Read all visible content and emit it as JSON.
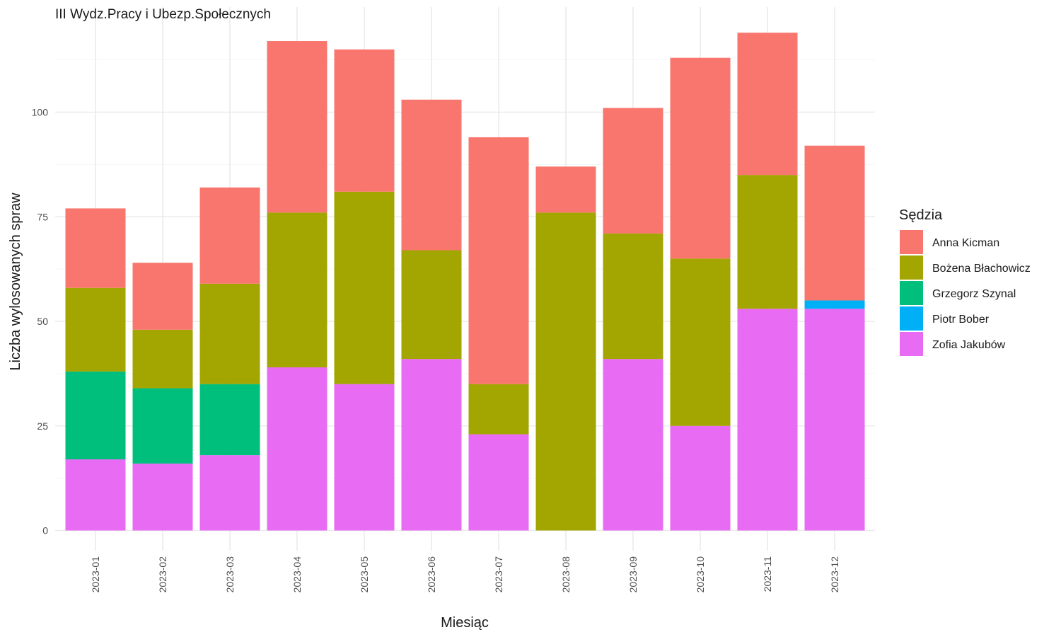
{
  "chart_data": {
    "type": "bar",
    "stacked": true,
    "title": "III Wydz.Pracy i Ubezp.Społecznych",
    "xlabel": "Miesiąc",
    "ylabel": "Liczba wylosowanych spraw",
    "ylim": [
      0,
      122
    ],
    "yticks": [
      0,
      25,
      50,
      75,
      100
    ],
    "grid": true,
    "legend_title": "Sędzia",
    "legend_position": "right",
    "categories": [
      "2023-01",
      "2023-02",
      "2023-03",
      "2023-04",
      "2023-05",
      "2023-06",
      "2023-07",
      "2023-08",
      "2023-09",
      "2023-10",
      "2023-11",
      "2023-12"
    ],
    "series": [
      {
        "name": "Zofia Jakubów",
        "color": "#E76BF3",
        "values": [
          17,
          16,
          18,
          39,
          35,
          41,
          23,
          0,
          41,
          25,
          53,
          53
        ]
      },
      {
        "name": "Piotr Bober",
        "color": "#00B0F6",
        "values": [
          0,
          0,
          0,
          0,
          0,
          0,
          0,
          0,
          0,
          0,
          0,
          2
        ]
      },
      {
        "name": "Grzegorz Szynal",
        "color": "#00BF7D",
        "values": [
          21,
          18,
          17,
          0,
          0,
          0,
          0,
          0,
          0,
          0,
          0,
          0
        ]
      },
      {
        "name": "Bożena Błachowicz",
        "color": "#A3A500",
        "values": [
          20,
          14,
          24,
          37,
          46,
          26,
          12,
          76,
          30,
          40,
          32,
          0
        ]
      },
      {
        "name": "Anna Kicman",
        "color": "#F8766D",
        "values": [
          19,
          16,
          23,
          41,
          34,
          36,
          59,
          11,
          30,
          48,
          34,
          37
        ]
      }
    ],
    "legend_order": [
      "Anna Kicman",
      "Bożena Błachowicz",
      "Grzegorz Szynal",
      "Piotr Bober",
      "Zofia Jakubów"
    ]
  }
}
